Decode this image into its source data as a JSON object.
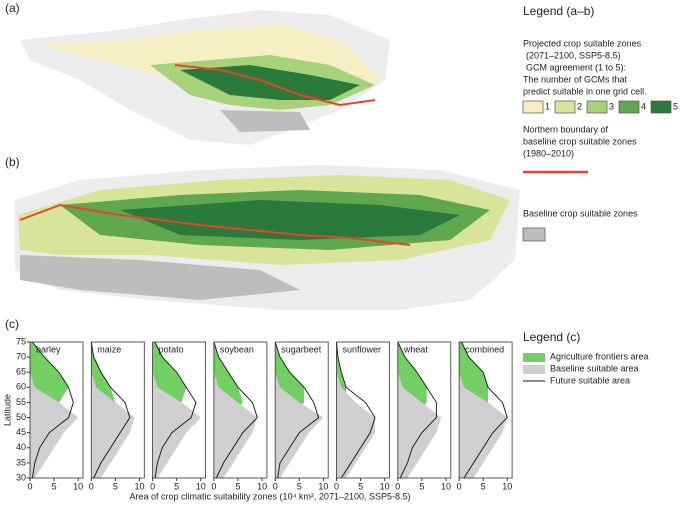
{
  "maps": {
    "panel_a": "(a)",
    "panel_b": "(b)"
  },
  "legend_ab": {
    "title": "Legend (a–b)",
    "lines": [
      "Projected crop suitable zones",
      "(2071–2100, SSP5-8.5)",
      "GCM agreement (1 to 5):",
      "The number of GCMs that",
      "predict suitable  in one grid cell."
    ],
    "levels": [
      {
        "label": "1",
        "color": "#f5efc4"
      },
      {
        "label": "2",
        "color": "#d7e49a"
      },
      {
        "label": "3",
        "color": "#a8d27a"
      },
      {
        "label": "4",
        "color": "#5fa84f"
      },
      {
        "label": "5",
        "color": "#2a7a3b"
      }
    ],
    "boundary": [
      "Northern boundary of",
      "baseline crop suitable  zones",
      "(1980–2010)"
    ],
    "boundary_color": "#e8432e",
    "baseline": "Baseline  crop suitable zones",
    "baseline_color": "#bdbdbd"
  },
  "chart_data": {
    "type": "area-profiles",
    "panel_label": "(c)",
    "ylabel": "Latitude",
    "xlabel": "Area of crop climatic suitability zones (10⁴ km², 2071–2100, SSP5-8.5)",
    "xlim": [
      0,
      11
    ],
    "xticks": [
      0,
      5,
      10
    ],
    "ylim": [
      30,
      75
    ],
    "yticks": [
      30,
      35,
      40,
      45,
      50,
      55,
      60,
      65,
      70,
      75
    ],
    "latitudes": [
      30,
      35,
      40,
      45,
      50,
      55,
      60,
      65,
      70,
      75
    ],
    "legend_title": "Legend (c)",
    "legend": [
      {
        "name": "Agriculture frontiers area",
        "color": "#72d062"
      },
      {
        "name": "Baseline suitable area",
        "color": "#cfcfcf"
      },
      {
        "name": "Future suitable area",
        "color": "#111111"
      }
    ],
    "panels": [
      {
        "title": "barley",
        "frontier": [
          0,
          0,
          0.5,
          1,
          3,
          6,
          8,
          6,
          3,
          0.5
        ],
        "baseline": [
          1,
          3,
          5,
          7,
          10,
          6,
          1,
          0,
          0,
          0
        ],
        "future": [
          0.5,
          1,
          2,
          4,
          8,
          9,
          8,
          6,
          3,
          0.5
        ]
      },
      {
        "title": "maize",
        "frontier": [
          0,
          0,
          0.5,
          1,
          3,
          5,
          4,
          2,
          0.5,
          0
        ],
        "baseline": [
          2,
          4,
          6,
          8,
          9,
          5,
          1,
          0,
          0,
          0
        ],
        "future": [
          0.5,
          2,
          4,
          6,
          8,
          7,
          4,
          2,
          0.5,
          0
        ]
      },
      {
        "title": "potato",
        "frontier": [
          0,
          0,
          0.5,
          1,
          3,
          6,
          7,
          5,
          2,
          0.5
        ],
        "baseline": [
          1,
          3,
          5,
          7,
          10,
          6,
          1,
          0,
          0,
          0
        ],
        "future": [
          0.5,
          1,
          2,
          4,
          8,
          9,
          7,
          5,
          2,
          0.5
        ]
      },
      {
        "title": "soybean",
        "frontier": [
          0,
          0,
          0.5,
          1,
          3,
          6,
          5,
          3,
          1,
          0
        ],
        "baseline": [
          2,
          4,
          6,
          8,
          9,
          5,
          1,
          0,
          0,
          0
        ],
        "future": [
          0.5,
          2,
          4,
          6,
          9,
          8,
          5,
          3,
          1,
          0
        ]
      },
      {
        "title": "sugarbeet",
        "frontier": [
          0,
          0,
          0.5,
          1,
          3,
          6,
          6,
          3,
          1,
          0
        ],
        "baseline": [
          1,
          3,
          5,
          7,
          10,
          5,
          1,
          0,
          0,
          0
        ],
        "future": [
          0.5,
          1,
          3,
          5,
          9,
          8,
          6,
          3,
          1,
          0
        ]
      },
      {
        "title": "sunflower",
        "frontier": [
          0,
          0,
          0.3,
          0.5,
          1,
          2,
          2,
          1,
          0.3,
          0
        ],
        "baseline": [
          2,
          4,
          6,
          8,
          8,
          4,
          1,
          0,
          0,
          0
        ],
        "future": [
          1,
          3,
          5,
          7,
          8,
          6,
          2,
          1,
          0.3,
          0
        ]
      },
      {
        "title": "wheat",
        "frontier": [
          0,
          0,
          0.5,
          1,
          3,
          6,
          6,
          4,
          1.5,
          0
        ],
        "baseline": [
          2,
          4,
          6,
          8,
          9,
          5,
          1,
          0,
          0,
          0
        ],
        "future": [
          0.5,
          2,
          3,
          5,
          8,
          8,
          6,
          4,
          1.5,
          0
        ]
      },
      {
        "title": "combined",
        "frontier": [
          0,
          0,
          0.5,
          1,
          3,
          6,
          6,
          5,
          2,
          0.5
        ],
        "baseline": [
          3,
          5,
          7,
          9,
          10,
          6,
          1,
          0,
          0,
          0
        ],
        "future": [
          1,
          3,
          5,
          7,
          10,
          9,
          6,
          5,
          2,
          0.5
        ]
      }
    ]
  }
}
